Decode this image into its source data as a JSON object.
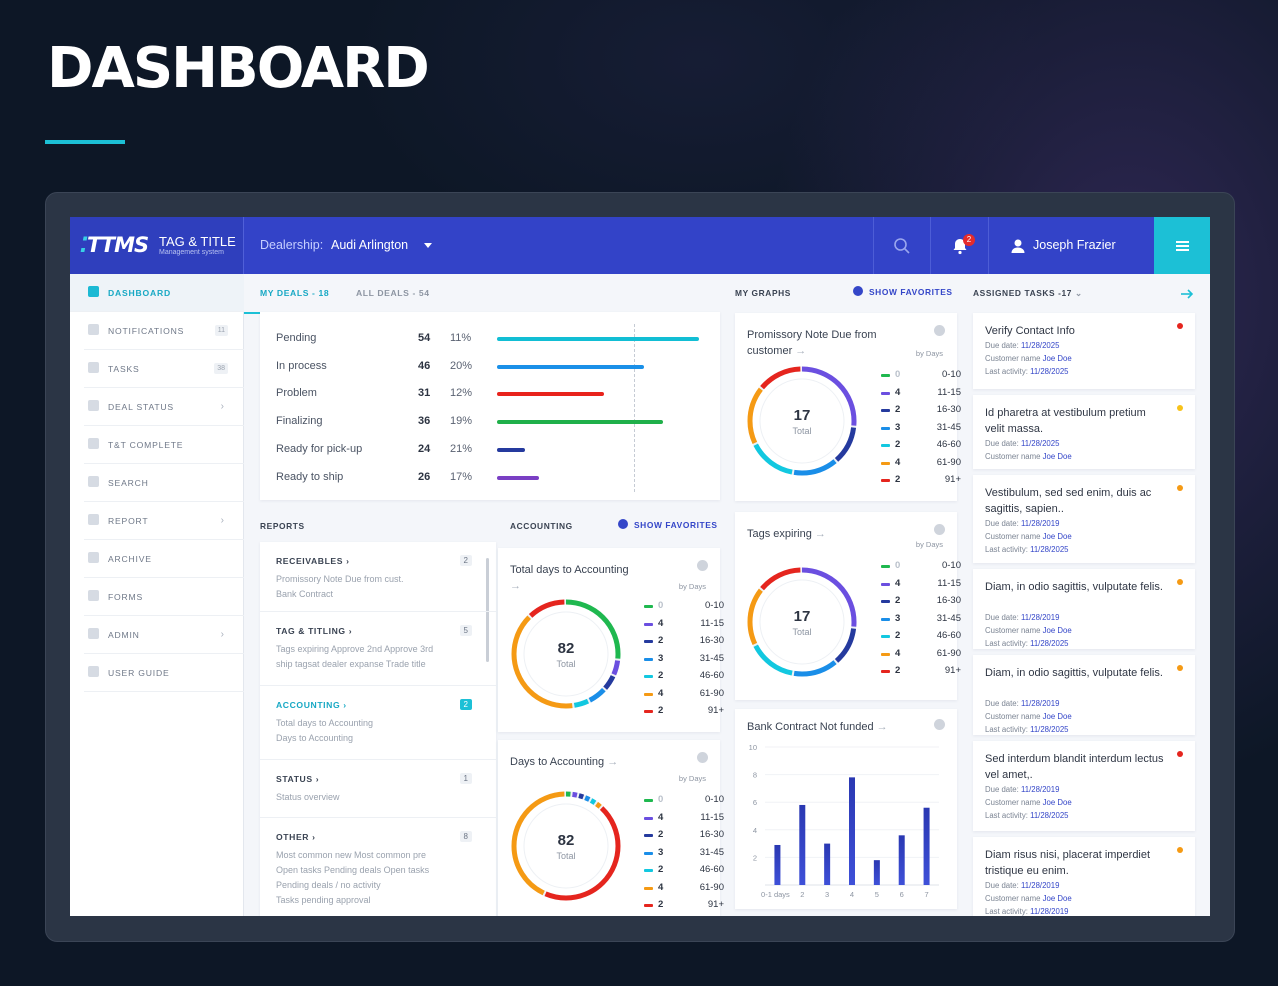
{
  "hero": {
    "title": "DASHBOARD"
  },
  "app": {
    "logo": {
      "mark": "TTMS",
      "title": "TAG & TITLE",
      "subtitle": "Management system"
    },
    "dealership": {
      "label": "Dealership:",
      "value": "Audi Arlington"
    },
    "notifications_badge": "2",
    "user": "Joseph Frazier"
  },
  "sidebar": {
    "items": [
      {
        "label": "DASHBOARD",
        "count": "",
        "chevron": false,
        "active": true
      },
      {
        "label": "NOTIFICATIONS",
        "count": "11",
        "chevron": false
      },
      {
        "label": "TASKS",
        "count": "38",
        "chevron": false
      },
      {
        "label": "DEAL STATUS",
        "count": "",
        "chevron": true
      },
      {
        "label": "T&T COMPLETE",
        "count": "",
        "chevron": false
      },
      {
        "label": "SEARCH",
        "count": "",
        "chevron": false
      },
      {
        "label": "REPORT",
        "count": "",
        "chevron": true
      },
      {
        "label": "ARCHIVE",
        "count": "",
        "chevron": false
      },
      {
        "label": "FORMS",
        "count": "",
        "chevron": false
      },
      {
        "label": "ADMIN",
        "count": "",
        "chevron": true
      },
      {
        "label": "USER GUIDE",
        "count": "",
        "chevron": false
      }
    ]
  },
  "deals": {
    "tabs": [
      "MY DEALS - 18",
      "ALL DEALS - 54"
    ],
    "rows": [
      {
        "name": "Pending",
        "count": "54",
        "pct": "11%",
        "value": 1.0,
        "color": "#12bed4"
      },
      {
        "name": "In process",
        "count": "46",
        "pct": "20%",
        "value": 0.73,
        "color": "#1a90e8"
      },
      {
        "name": "Problem",
        "count": "31",
        "pct": "12%",
        "value": 0.53,
        "color": "#e8231c"
      },
      {
        "name": "Finalizing",
        "count": "36",
        "pct": "19%",
        "value": 0.82,
        "color": "#20b04a"
      },
      {
        "name": "Ready for pick-up",
        "count": "24",
        "pct": "21%",
        "value": 0.14,
        "color": "#253a9e"
      },
      {
        "name": "Ready to ship",
        "count": "26",
        "pct": "17%",
        "value": 0.21,
        "color": "#7a3fc4"
      }
    ]
  },
  "reports": {
    "title": "REPORTS",
    "items": [
      {
        "title": "RECEIVABLES",
        "count": "2",
        "desc": "Promissory Note Due from cust.\nBank Contract",
        "active": false
      },
      {
        "title": "TAG & TITLING",
        "count": "5",
        "desc": "Tags expiring   Approve 2nd   Approve 3rd\nship tagsat dealer expanse   Trade title",
        "active": false
      },
      {
        "title": "ACCOUNTING",
        "count": "2",
        "desc": "Total days to Accounting\nDays to Accounting",
        "active": true
      },
      {
        "title": "STATUS",
        "count": "1",
        "desc": "Status overview",
        "active": false
      },
      {
        "title": "OTHER",
        "count": "8",
        "desc": "Most common new   Most common pre\nOpen tasks   Pending deals   Open tasks\nPending deals / no activity\nTasks pending approval",
        "active": false
      }
    ]
  },
  "accounting": {
    "title": "ACCOUNTING",
    "show_favorites": "SHOW FAVORITES",
    "cards": [
      {
        "title": "Total days to Accounting",
        "by": "by Days",
        "total": "82",
        "total_label": "Total",
        "legend": [
          {
            "c": "0",
            "r": "0-10"
          },
          {
            "c": "4",
            "r": "11-15"
          },
          {
            "c": "2",
            "r": "16-30"
          },
          {
            "c": "3",
            "r": "31-45"
          },
          {
            "c": "2",
            "r": "46-60"
          },
          {
            "c": "4",
            "r": "61-90"
          },
          {
            "c": "2",
            "r": "91+"
          }
        ]
      },
      {
        "title": "Days to Accounting",
        "by": "by Days",
        "total": "82",
        "total_label": "Total",
        "legend": [
          {
            "c": "0",
            "r": "0-10"
          },
          {
            "c": "4",
            "r": "11-15"
          },
          {
            "c": "2",
            "r": "16-30"
          },
          {
            "c": "3",
            "r": "31-45"
          },
          {
            "c": "2",
            "r": "46-60"
          },
          {
            "c": "4",
            "r": "61-90"
          },
          {
            "c": "2",
            "r": "91+"
          }
        ]
      }
    ]
  },
  "graphs": {
    "title": "MY GRAPHS",
    "show_favorites": "SHOW FAVORITES",
    "cards": [
      {
        "title": "Promissory Note Due from customer",
        "by": "by Days",
        "total": "17",
        "total_label": "Total",
        "legend": [
          {
            "c": "0",
            "r": "0-10"
          },
          {
            "c": "4",
            "r": "11-15"
          },
          {
            "c": "2",
            "r": "16-30"
          },
          {
            "c": "3",
            "r": "31-45"
          },
          {
            "c": "2",
            "r": "46-60"
          },
          {
            "c": "4",
            "r": "61-90"
          },
          {
            "c": "2",
            "r": "91+"
          }
        ]
      },
      {
        "title": "Tags expiring",
        "by": "by Days",
        "total": "17",
        "total_label": "Total",
        "legend": [
          {
            "c": "0",
            "r": "0-10"
          },
          {
            "c": "4",
            "r": "11-15"
          },
          {
            "c": "2",
            "r": "16-30"
          },
          {
            "c": "3",
            "r": "31-45"
          },
          {
            "c": "2",
            "r": "46-60"
          },
          {
            "c": "4",
            "r": "61-90"
          },
          {
            "c": "2",
            "r": "91+"
          }
        ]
      }
    ],
    "bank_title": "Bank Contract Not funded"
  },
  "legend_colors": [
    "#1fb84f",
    "#6b4fe0",
    "#253a9e",
    "#1a8ee8",
    "#12c8e0",
    "#f59a14",
    "#e5251e"
  ],
  "chart_data": {
    "type": "bar",
    "title": "Bank Contract Not funded",
    "categories": [
      "0-1 days",
      "2",
      "3",
      "4",
      "5",
      "6",
      "7"
    ],
    "values": [
      2.9,
      5.8,
      3.0,
      7.8,
      1.8,
      3.6,
      5.6
    ],
    "ylim": [
      0,
      10
    ],
    "yticks": [
      "10",
      "8",
      "6",
      "4",
      "2"
    ]
  },
  "tasks": {
    "title": "ASSIGNED TASKS -17",
    "items": [
      {
        "title": "Verify Contact Info",
        "due": "11/28/2025",
        "customer": "Joe Doe",
        "last": "11/28/2025",
        "color": "#e5251e"
      },
      {
        "title": "Id pharetra at vestibulum pretium velit massa.",
        "due": "11/28/2025",
        "customer": "Joe Doe",
        "last": "",
        "color": "#f7c21a"
      },
      {
        "title": "Vestibulum, sed sed enim, duis ac sagittis, sapien..",
        "due": "11/28/2019",
        "customer": "Joe Doe",
        "last": "11/28/2025",
        "color": "#f59a14"
      },
      {
        "title": "Diam, in odio sagittis, vulputate felis.",
        "due": "11/28/2019",
        "customer": "Joe Doe",
        "last": "11/28/2025",
        "color": "#f59a14"
      },
      {
        "title": "Diam, in odio sagittis, vulputate felis.",
        "due": "11/28/2019",
        "customer": "Joe Doe",
        "last": "11/28/2025",
        "color": "#f59a14"
      },
      {
        "title": "Sed interdum blandit interdum lectus vel amet,.",
        "due": "11/28/2019",
        "customer": "Joe Doe",
        "last": "11/28/2025",
        "color": "#e5251e"
      },
      {
        "title": "Diam risus nisi, placerat imperdiet tristique eu enim.",
        "due": "11/28/2019",
        "customer": "Joe Doe",
        "last": "11/28/2019",
        "color": "#f59a14"
      }
    ],
    "labels": {
      "due": "Due date:",
      "customer": "Customer name",
      "last": "Last activity:"
    }
  }
}
